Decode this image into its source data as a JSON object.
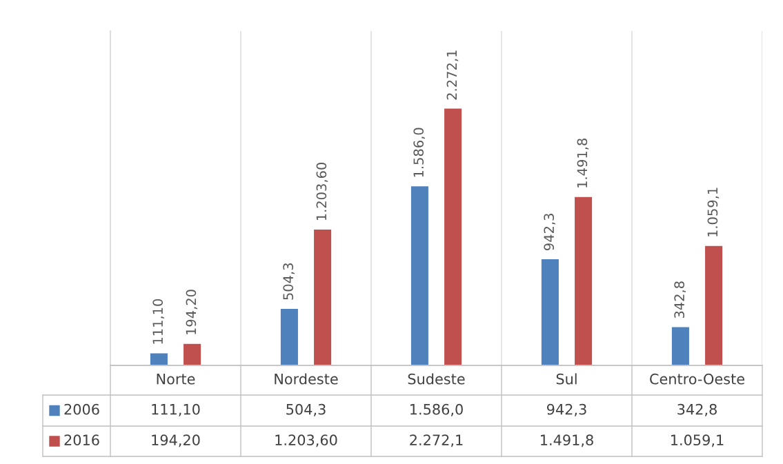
{
  "chart_data": {
    "type": "bar",
    "categories": [
      "Norte",
      "Nordeste",
      "Sudeste",
      "Sul",
      "Centro-Oeste"
    ],
    "series": [
      {
        "name": "2006",
        "color": "#4f81bd",
        "values": [
          111.1,
          504.3,
          1586.0,
          942.3,
          342.8
        ],
        "value_labels": [
          "111,10",
          "504,3",
          "1.586,0",
          "942,3",
          "342,8"
        ]
      },
      {
        "name": "2016",
        "color": "#c0504d",
        "values": [
          194.2,
          1203.6,
          2272.1,
          1491.8,
          1059.1
        ],
        "value_labels": [
          "194,20",
          "1.203,60",
          "2.272,1",
          "1.491,8",
          "1.059,1"
        ]
      }
    ],
    "grid": "x",
    "legend": "bottom left"
  }
}
